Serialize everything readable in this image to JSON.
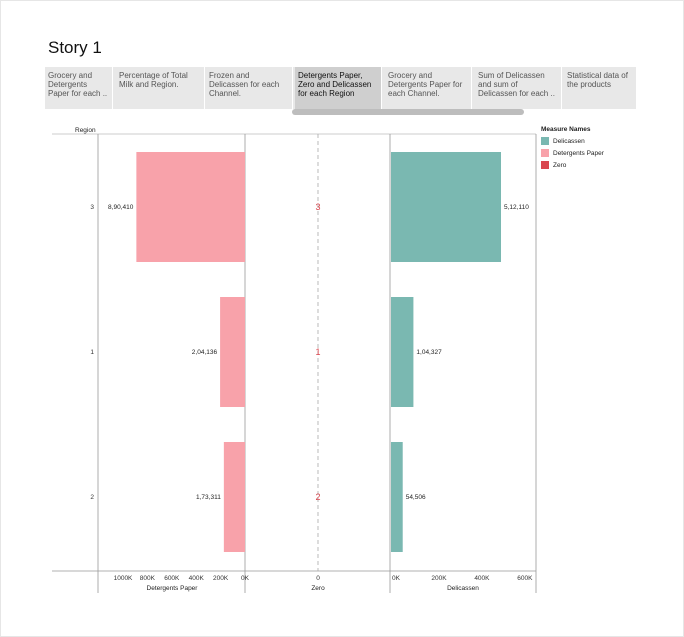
{
  "story": {
    "title": "Story 1"
  },
  "tabs": [
    {
      "label": "Grocery and Detergents Paper for each ..",
      "active": false
    },
    {
      "label": "Percentage of Total Milk and Region.",
      "active": false
    },
    {
      "label": "Frozen and Delicassen for each Channel.",
      "active": false
    },
    {
      "label": "Detergents Paper, Zero and Delicassen for each Region",
      "active": true
    },
    {
      "label": "Grocery and Detergents Paper for each Channel.",
      "active": false
    },
    {
      "label": "Sum of Delicassen and sum of Delicassen for each ..",
      "active": false
    },
    {
      "label": "Statistical data of the products",
      "active": false
    }
  ],
  "chart_data": {
    "type": "bar",
    "orientation": "horizontal",
    "row_header": "Region",
    "categories": [
      "3",
      "1",
      "2"
    ],
    "panels": [
      {
        "measure": "Detergents Paper",
        "axis_label": "Detergents Paper",
        "values": [
          890410,
          204136,
          173311
        ],
        "data_labels": [
          "8,90,410",
          "2,04,136",
          "1,73,311"
        ],
        "xlim": [
          0,
          1200000
        ],
        "reversed": true,
        "ticks": [
          1000000,
          800000,
          600000,
          400000,
          200000,
          0
        ],
        "tick_labels": [
          "1000K",
          "800K",
          "600K",
          "400K",
          "200K",
          "0K"
        ],
        "color": "#f8a2aa"
      },
      {
        "measure": "Zero",
        "axis_label": "Zero",
        "values": [
          0,
          0,
          0
        ],
        "data_labels": [
          "3",
          "1",
          "2"
        ],
        "ticks": [
          0
        ],
        "tick_labels": [
          "0"
        ],
        "color": "#d9474f"
      },
      {
        "measure": "Delicassen",
        "axis_label": "Delicassen",
        "values": [
          512110,
          104327,
          54506
        ],
        "data_labels": [
          "5,12,110",
          "1,04,327",
          "54,506"
        ],
        "xlim": [
          0,
          680000
        ],
        "reversed": false,
        "ticks": [
          0,
          200000,
          400000,
          600000
        ],
        "tick_labels": [
          "0K",
          "200K",
          "400K",
          "600K"
        ],
        "color": "#7ab8b1"
      }
    ],
    "legend": {
      "title": "Measure Names",
      "position": "right",
      "items": [
        {
          "label": "Delicassen",
          "color": "#7ab8b1"
        },
        {
          "label": "Detergents Paper",
          "color": "#f8a2aa"
        },
        {
          "label": "Zero",
          "color": "#d9474f"
        }
      ]
    },
    "grid": false
  }
}
